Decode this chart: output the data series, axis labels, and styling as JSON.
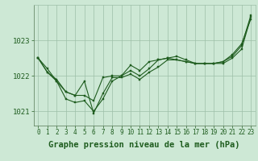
{
  "background_color": "#cde8d5",
  "plot_bg_color": "#cde8d5",
  "grid_color": "#9dbfa8",
  "line_color": "#1e5c1e",
  "marker_color": "#1e5c1e",
  "xlabel": "Graphe pression niveau de la mer (hPa)",
  "xlabel_fontsize": 7.5,
  "ylabel_fontsize": 6.5,
  "tick_fontsize": 5.5,
  "ylim": [
    1020.6,
    1024.0
  ],
  "xlim": [
    -0.5,
    23.5
  ],
  "yticks": [
    1021,
    1022,
    1023
  ],
  "xticks": [
    0,
    1,
    2,
    3,
    4,
    5,
    6,
    7,
    8,
    9,
    10,
    11,
    12,
    13,
    14,
    15,
    16,
    17,
    18,
    19,
    20,
    21,
    22,
    23
  ],
  "series": [
    [
      1022.5,
      1022.2,
      1021.85,
      1021.55,
      1021.45,
      1021.85,
      1020.95,
      1021.5,
      1021.95,
      1021.95,
      1022.05,
      1021.9,
      1022.1,
      1022.25,
      1022.45,
      1022.45,
      1022.4,
      1022.35,
      1022.35,
      1022.35,
      1022.35,
      1022.5,
      1022.75,
      1023.65
    ],
    [
      1022.5,
      1022.1,
      1021.85,
      1021.35,
      1021.25,
      1021.3,
      1021.0,
      1021.35,
      1021.85,
      1022.0,
      1022.15,
      1022.0,
      1022.2,
      1022.45,
      1022.5,
      1022.45,
      1022.4,
      1022.35,
      1022.35,
      1022.35,
      1022.4,
      1022.6,
      1022.9,
      1023.6
    ],
    [
      1022.5,
      1022.1,
      1021.9,
      1021.55,
      1021.45,
      1021.45,
      1021.3,
      1021.95,
      1022.0,
      1022.0,
      1022.3,
      1022.15,
      1022.4,
      1022.45,
      1022.5,
      1022.55,
      1022.45,
      1022.35,
      1022.35,
      1022.35,
      1022.4,
      1022.55,
      1022.85,
      1023.7
    ]
  ],
  "marker_size": 2.0,
  "line_width": 0.8
}
